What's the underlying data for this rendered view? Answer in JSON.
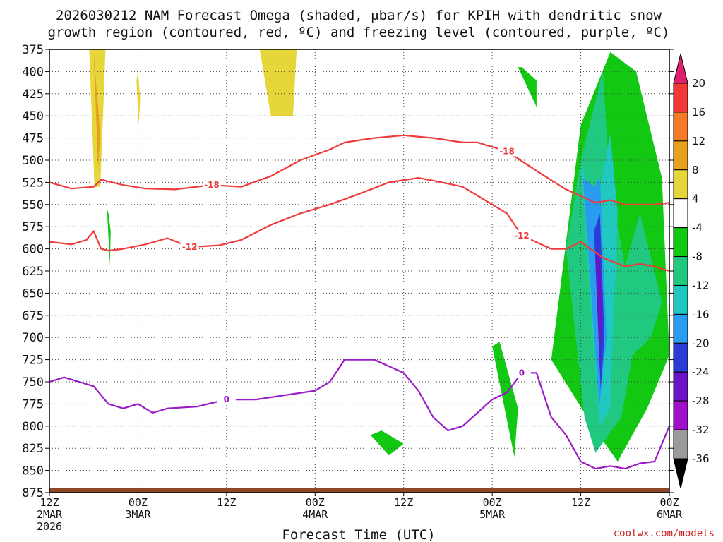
{
  "chart_data": {
    "type": "time-height cross section",
    "title_line1": "2026030212 NAM Forecast Omega (shaded, μbar/s) for KPIH with dendritic snow",
    "title_line2": "growth region (contoured, red, ºC) and freezing level (contoured, purple, ºC)",
    "xlabel": "Forecast Time (UTC)",
    "credit": "coolwx.com/models",
    "x_range_hours": [
      0,
      84
    ],
    "y_range_mb": [
      875,
      375
    ],
    "y_ticks": [
      "375",
      "400",
      "425",
      "450",
      "475",
      "500",
      "525",
      "550",
      "575",
      "600",
      "625",
      "650",
      "675",
      "700",
      "725",
      "750",
      "775",
      "800",
      "825",
      "850",
      "875"
    ],
    "x_ticks": [
      {
        "hour": 0,
        "time": "12Z",
        "date": "2MAR",
        "year": "2026"
      },
      {
        "hour": 12,
        "time": "00Z",
        "date": "3MAR",
        "year": ""
      },
      {
        "hour": 24,
        "time": "12Z",
        "date": "",
        "year": ""
      },
      {
        "hour": 36,
        "time": "00Z",
        "date": "4MAR",
        "year": ""
      },
      {
        "hour": 48,
        "time": "12Z",
        "date": "",
        "year": ""
      },
      {
        "hour": 60,
        "time": "00Z",
        "date": "5MAR",
        "year": ""
      },
      {
        "hour": 72,
        "time": "12Z",
        "date": "",
        "year": ""
      },
      {
        "hour": 84,
        "time": "00Z",
        "date": "6MAR",
        "year": ""
      }
    ],
    "colorbar": {
      "labels": [
        "20",
        "16",
        "12",
        "8",
        "4",
        "-4",
        "-8",
        "-12",
        "-16",
        "-20",
        "-24",
        "-28",
        "-32",
        "-36"
      ],
      "colors": [
        "#e0206e",
        "#f03838",
        "#f47a28",
        "#e8a020",
        "#e6d63a",
        "#ffffff",
        "#12c812",
        "#20c880",
        "#20c8c0",
        "#2a9cf0",
        "#2a3cd8",
        "#6a14c8",
        "#a010c8",
        "#9a9a9a",
        "#000000"
      ]
    },
    "dendritic_contours": [
      {
        "label": "-18",
        "hours": [
          0,
          3,
          6,
          7,
          10,
          13,
          17,
          22,
          26,
          30,
          34,
          38,
          40,
          44,
          48,
          52,
          56,
          58,
          62,
          66,
          70,
          74,
          76,
          78,
          82,
          84
        ],
        "mb": [
          525,
          532,
          530,
          522,
          528,
          532,
          533,
          528,
          530,
          518,
          500,
          488,
          480,
          475,
          472,
          475,
          480,
          480,
          490,
          512,
          533,
          548,
          545,
          550,
          550,
          548
        ]
      },
      {
        "label": "-12",
        "hours": [
          0,
          3,
          5,
          6,
          7,
          8,
          10,
          13,
          16,
          19,
          23,
          26,
          30,
          34,
          38,
          42,
          46,
          50,
          52,
          56,
          58,
          62,
          64,
          68,
          70,
          72,
          75,
          78,
          80,
          82,
          84
        ],
        "mb": [
          592,
          595,
          590,
          580,
          600,
          602,
          600,
          595,
          588,
          598,
          596,
          590,
          573,
          560,
          550,
          538,
          525,
          520,
          523,
          530,
          540,
          560,
          585,
          600,
          600,
          592,
          610,
          620,
          617,
          620,
          625
        ]
      }
    ],
    "freezing_contours": [
      {
        "label": "0",
        "hours": [
          0,
          2,
          4,
          6,
          8,
          10,
          12,
          14,
          16,
          20,
          24,
          28,
          32,
          36,
          38,
          40,
          44,
          48,
          50,
          52,
          54,
          56,
          58,
          60,
          62,
          64,
          66,
          68,
          70,
          72,
          74,
          76,
          78,
          80,
          82,
          84
        ],
        "mb": [
          750,
          745,
          750,
          755,
          775,
          780,
          775,
          785,
          780,
          778,
          770,
          770,
          765,
          760,
          750,
          725,
          725,
          740,
          760,
          790,
          805,
          800,
          785,
          770,
          762,
          740,
          740,
          790,
          810,
          840,
          848,
          845,
          848,
          842,
          840,
          800
        ]
      }
    ],
    "omega_regions": [
      {
        "value": 6,
        "hours": [
          5.4,
          6.1,
          6.9,
          7.6
        ],
        "mb": [
          375,
          530,
          530,
          375
        ]
      },
      {
        "value": 10,
        "hours": [
          6.0,
          6.6,
          6.9,
          6.1
        ],
        "mb": [
          380,
          510,
          470,
          390
        ]
      },
      {
        "value": 6,
        "hours": [
          11.8,
          12.1,
          12.3,
          12.0
        ],
        "mb": [
          410,
          460,
          430,
          400
        ]
      },
      {
        "value": 6,
        "hours": [
          28.5,
          30.0,
          33.0,
          33.5
        ],
        "mb": [
          375,
          450,
          450,
          375
        ]
      },
      {
        "value": -6,
        "hours": [
          7.8,
          8.2,
          8.3,
          8.0
        ],
        "mb": [
          555,
          618,
          580,
          560
        ]
      },
      {
        "value": -6,
        "hours": [
          43.5,
          46.0,
          48.0,
          45.0
        ],
        "mb": [
          810,
          833,
          820,
          805
        ]
      },
      {
        "value": -6,
        "hours": [
          60.0,
          63.0,
          63.5,
          61.0
        ],
        "mb": [
          710,
          835,
          780,
          705
        ]
      },
      {
        "value": -6,
        "hours": [
          63.5,
          66.0,
          66.0,
          64.0
        ],
        "mb": [
          395,
          440,
          410,
          395
        ]
      },
      {
        "value": -6,
        "hours": [
          68.0,
          74.0,
          77.0,
          81.0,
          84.0,
          83.0,
          79.5,
          76.0,
          72.0
        ],
        "mb": [
          725,
          805,
          840,
          780,
          720,
          520,
          400,
          378,
          460
        ]
      },
      {
        "value": -10,
        "hours": [
          70.0,
          72.5,
          74.0,
          77.5,
          79.0,
          81.5,
          83.0,
          80.0,
          78.0,
          76.0,
          75.0,
          72.0
        ],
        "mb": [
          600,
          790,
          830,
          790,
          720,
          700,
          660,
          560,
          620,
          530,
          400,
          500
        ]
      },
      {
        "value": -14,
        "hours": [
          72.0,
          74.5,
          76.0,
          77.0,
          76.0,
          74.0
        ],
        "mb": [
          500,
          800,
          780,
          560,
          470,
          560
        ]
      },
      {
        "value": -18,
        "hours": [
          72.3,
          74.5,
          75.5,
          74.6,
          73.8
        ],
        "mb": [
          520,
          780,
          700,
          520,
          530
        ]
      },
      {
        "value": -22,
        "hours": [
          73.8,
          74.7,
          75.2,
          74.6
        ],
        "mb": [
          580,
          760,
          700,
          560
        ]
      },
      {
        "value": -26,
        "hours": [
          74.0,
          74.6,
          74.9,
          74.5
        ],
        "mb": [
          610,
          740,
          660,
          600
        ]
      }
    ],
    "terrain_mb": 870
  }
}
